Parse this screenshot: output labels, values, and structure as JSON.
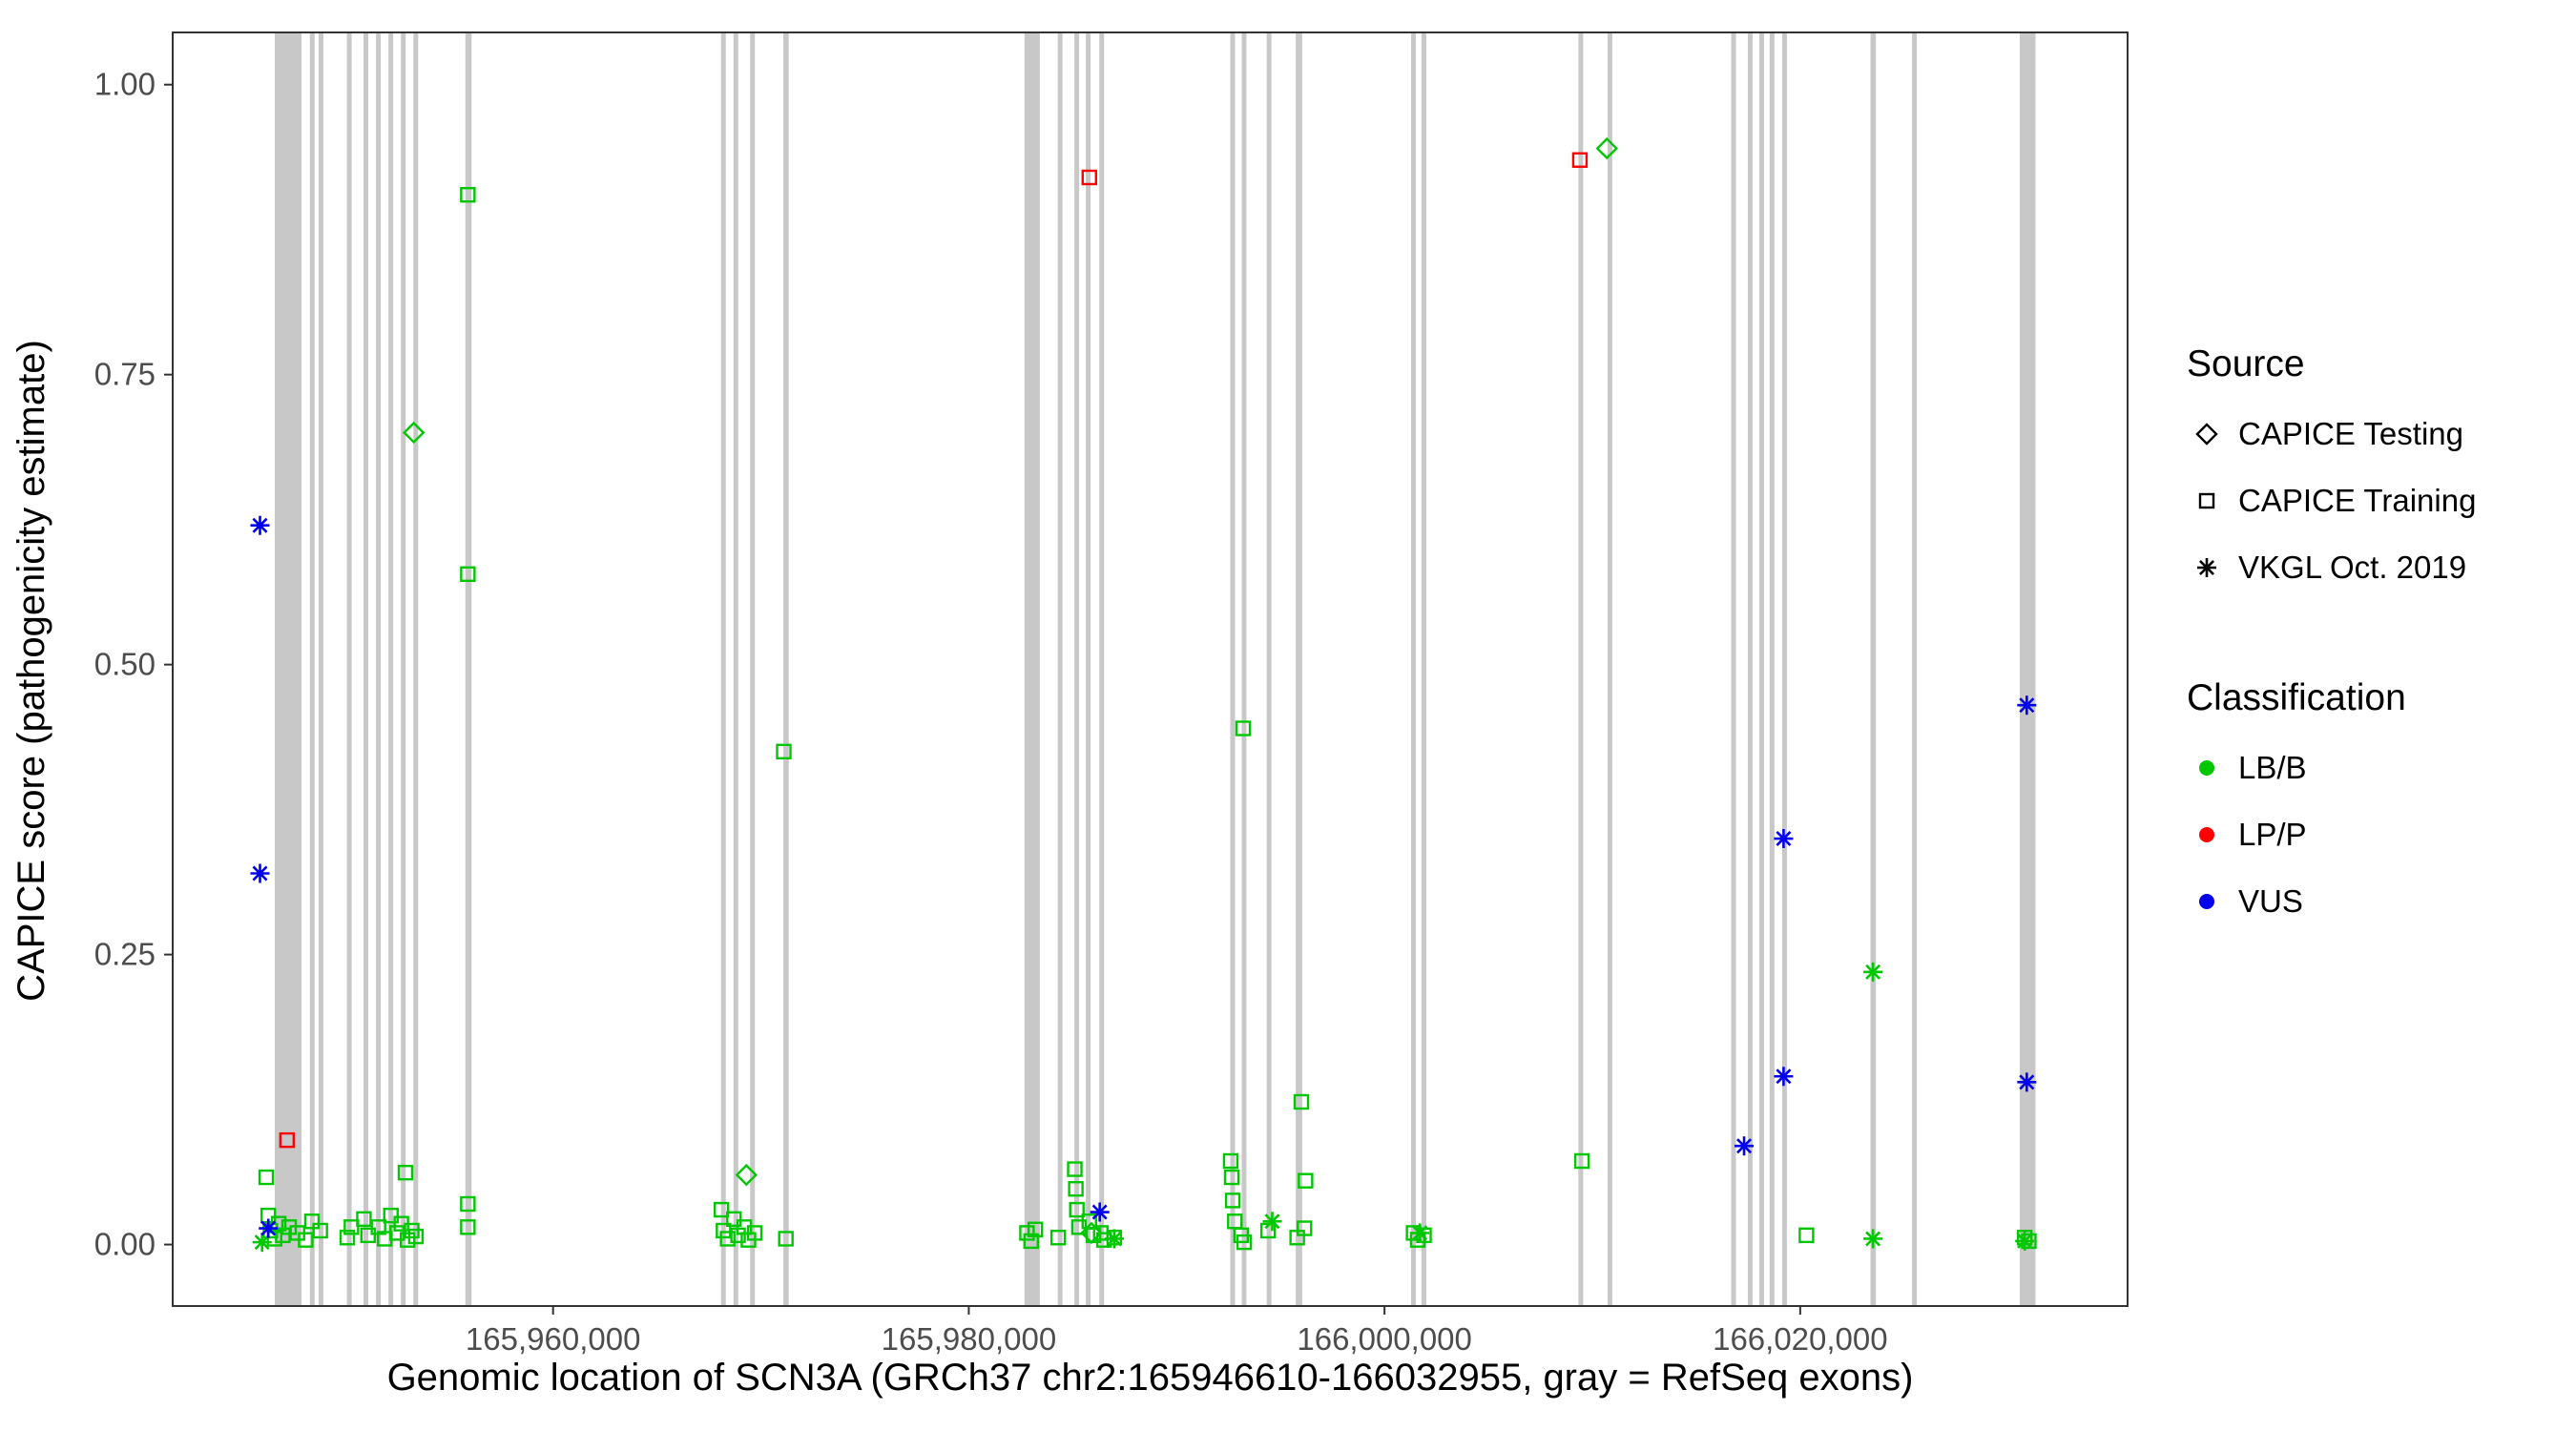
{
  "chart_data": {
    "type": "scatter",
    "title": "",
    "xlabel": "Genomic location of SCN3A (GRCh37 chr2:165946610-166032955, gray = RefSeq exons)",
    "ylabel": "CAPICE score (pathogenicity estimate)",
    "xlim": [
      165941700,
      166035750
    ],
    "ylim": [
      -0.053,
      1.045
    ],
    "grid": false,
    "legend_position": "right",
    "x_ticks": [
      {
        "value": 165960000,
        "label": "165,960,000"
      },
      {
        "value": 165980000,
        "label": "165,980,000"
      },
      {
        "value": 166000000,
        "label": "166,000,000"
      },
      {
        "value": 166020000,
        "label": "166,020,000"
      }
    ],
    "y_ticks": [
      {
        "value": 0.0,
        "label": "0.00"
      },
      {
        "value": 0.25,
        "label": "0.25"
      },
      {
        "value": 0.5,
        "label": "0.50"
      },
      {
        "value": 0.75,
        "label": "0.75"
      },
      {
        "value": 1.0,
        "label": "1.00"
      }
    ],
    "exon_color": "#C8C8C8",
    "exons": [
      [
        165946610,
        165947900
      ],
      [
        165948300,
        165948520
      ],
      [
        165948720,
        165948920
      ],
      [
        165950080,
        165950300
      ],
      [
        165950880,
        165951100
      ],
      [
        165951480,
        165951700
      ],
      [
        165952080,
        165952300
      ],
      [
        165952680,
        165952900
      ],
      [
        165953280,
        165953500
      ],
      [
        165955780,
        165956080
      ],
      [
        165968080,
        165968300
      ],
      [
        165968680,
        165968900
      ],
      [
        165969480,
        165969700
      ],
      [
        165971080,
        165971340
      ],
      [
        165982680,
        165983420
      ],
      [
        165984280,
        165984500
      ],
      [
        165985080,
        165985300
      ],
      [
        165985630,
        165985850
      ],
      [
        165986280,
        165986500
      ],
      [
        165992580,
        165992800
      ],
      [
        165993130,
        165993350
      ],
      [
        165994330,
        165994550
      ],
      [
        165995730,
        165996040
      ],
      [
        166001280,
        166001500
      ],
      [
        166001780,
        166002000
      ],
      [
        166009330,
        166009560
      ],
      [
        166010730,
        166010960
      ],
      [
        166016680,
        166016900
      ],
      [
        166017480,
        166017700
      ],
      [
        166018030,
        166018250
      ],
      [
        166018530,
        166018750
      ],
      [
        166019130,
        166019350
      ],
      [
        166023380,
        166023640
      ],
      [
        166025380,
        166025600
      ],
      [
        166030560,
        166031320
      ]
    ],
    "series": [
      {
        "name": "CAPICE Testing - LB/B",
        "source": "CAPICE Testing",
        "classification": "LB/B",
        "marker": "diamond",
        "color": "#00C800",
        "points": [
          [
            165953300,
            0.7
          ],
          [
            165969300,
            0.06
          ],
          [
            165985900,
            0.01
          ],
          [
            166010700,
            0.945
          ]
        ]
      },
      {
        "name": "CAPICE Training - LB/B",
        "source": "CAPICE Training",
        "classification": "LB/B",
        "marker": "square",
        "color": "#00C800",
        "points": [
          [
            165946200,
            0.058
          ],
          [
            165946300,
            0.025
          ],
          [
            165946400,
            0.012
          ],
          [
            165946600,
            0.005
          ],
          [
            165946800,
            0.018
          ],
          [
            165947000,
            0.008
          ],
          [
            165947300,
            0.015
          ],
          [
            165947700,
            0.01
          ],
          [
            165948100,
            0.004
          ],
          [
            165948400,
            0.02
          ],
          [
            165948800,
            0.012
          ],
          [
            165950100,
            0.006
          ],
          [
            165950300,
            0.015
          ],
          [
            165950900,
            0.022
          ],
          [
            165951100,
            0.008
          ],
          [
            165951600,
            0.015
          ],
          [
            165951900,
            0.005
          ],
          [
            165952200,
            0.025
          ],
          [
            165952500,
            0.01
          ],
          [
            165952700,
            0.018
          ],
          [
            165952900,
            0.062
          ],
          [
            165953000,
            0.004
          ],
          [
            165953200,
            0.012
          ],
          [
            165953400,
            0.007
          ],
          [
            165955900,
            0.905
          ],
          [
            165955900,
            0.578
          ],
          [
            165955900,
            0.035
          ],
          [
            165955900,
            0.015
          ],
          [
            165968100,
            0.03
          ],
          [
            165968200,
            0.012
          ],
          [
            165968400,
            0.005
          ],
          [
            165968700,
            0.022
          ],
          [
            165968900,
            0.008
          ],
          [
            165969200,
            0.015
          ],
          [
            165969400,
            0.004
          ],
          [
            165969700,
            0.01
          ],
          [
            165971100,
            0.425
          ],
          [
            165971200,
            0.005
          ],
          [
            165982800,
            0.01
          ],
          [
            165983000,
            0.003
          ],
          [
            165983200,
            0.013
          ],
          [
            165984300,
            0.006
          ],
          [
            165985100,
            0.065
          ],
          [
            165985150,
            0.048
          ],
          [
            165985200,
            0.03
          ],
          [
            165985300,
            0.015
          ],
          [
            165985800,
            0.02
          ],
          [
            165986000,
            0.008
          ],
          [
            165986350,
            0.01
          ],
          [
            165986500,
            0.004
          ],
          [
            165987000,
            0.006
          ],
          [
            165992600,
            0.072
          ],
          [
            165992650,
            0.058
          ],
          [
            165992700,
            0.038
          ],
          [
            165992800,
            0.02
          ],
          [
            165993100,
            0.008
          ],
          [
            165993250,
            0.002
          ],
          [
            165993200,
            0.445
          ],
          [
            165994400,
            0.012
          ],
          [
            165995800,
            0.006
          ],
          [
            165996000,
            0.123
          ],
          [
            165996200,
            0.055
          ],
          [
            165996150,
            0.014
          ],
          [
            166001400,
            0.01
          ],
          [
            166001600,
            0.004
          ],
          [
            166001900,
            0.008
          ],
          [
            166009500,
            0.072
          ],
          [
            166020300,
            0.008
          ],
          [
            166030800,
            0.006
          ],
          [
            166031000,
            0.003
          ]
        ]
      },
      {
        "name": "CAPICE Training - LP/P",
        "source": "CAPICE Training",
        "classification": "LP/P",
        "marker": "square",
        "color": "#FF0000",
        "points": [
          [
            165947200,
            0.09
          ],
          [
            165985800,
            0.92
          ],
          [
            166009400,
            0.935
          ]
        ]
      },
      {
        "name": "VKGL Oct. 2019 - LB/B",
        "source": "VKGL Oct. 2019",
        "classification": "LB/B",
        "marker": "asterisk",
        "color": "#00C800",
        "points": [
          [
            165946000,
            0.002
          ],
          [
            165987000,
            0.005
          ],
          [
            165994600,
            0.02
          ],
          [
            166001700,
            0.01
          ],
          [
            166023500,
            0.235
          ],
          [
            166023500,
            0.005
          ],
          [
            166030800,
            0.003
          ]
        ]
      },
      {
        "name": "VKGL Oct. 2019 - VUS",
        "source": "VKGL Oct. 2019",
        "classification": "VUS",
        "marker": "asterisk",
        "color": "#0000EE",
        "points": [
          [
            165945900,
            0.62
          ],
          [
            165945900,
            0.32
          ],
          [
            165946300,
            0.014
          ],
          [
            165986300,
            0.028
          ],
          [
            166017300,
            0.085
          ],
          [
            166019200,
            0.35
          ],
          [
            166019200,
            0.145
          ],
          [
            166030900,
            0.465
          ],
          [
            166030900,
            0.14
          ]
        ]
      }
    ]
  },
  "legend": {
    "source": {
      "title": "Source",
      "items": [
        {
          "label": "CAPICE Testing",
          "marker": "diamond"
        },
        {
          "label": "CAPICE Training",
          "marker": "square"
        },
        {
          "label": "VKGL Oct. 2019",
          "marker": "asterisk"
        }
      ]
    },
    "classification": {
      "title": "Classification",
      "items": [
        {
          "label": "LB/B",
          "color": "#00C800"
        },
        {
          "label": "LP/P",
          "color": "#FF0000"
        },
        {
          "label": "VUS",
          "color": "#0000EE"
        }
      ]
    }
  },
  "style": {
    "panel_border_color": "#333333",
    "tick_color": "#333333",
    "tick_label_color": "#4D4D4D",
    "background": "#FFFFFF"
  }
}
